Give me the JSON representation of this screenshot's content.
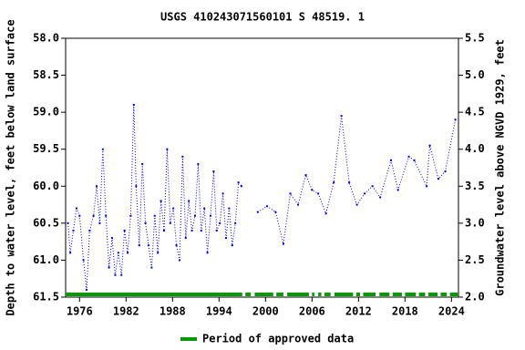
{
  "chart_data": {
    "type": "line",
    "title": "USGS 410243071560101 S 48519. 1",
    "ylabel": "Depth to water level, feet below land surface",
    "y2label": "Groundwater level above NGVD 1929, feet",
    "x": [
      1974.5,
      1974.8,
      1975.2,
      1975.6,
      1976.0,
      1976.5,
      1976.9,
      1977.3,
      1977.8,
      1978.2,
      1978.6,
      1979.0,
      1979.4,
      1979.8,
      1980.2,
      1980.6,
      1981.0,
      1981.4,
      1981.8,
      1982.2,
      1982.6,
      1983.0,
      1983.3,
      1983.7,
      1984.1,
      1984.5,
      1984.9,
      1985.3,
      1985.7,
      1986.1,
      1986.5,
      1986.9,
      1987.3,
      1987.7,
      1988.1,
      1988.5,
      1988.9,
      1989.3,
      1989.7,
      1990.1,
      1990.5,
      1990.9,
      1991.3,
      1991.7,
      1992.1,
      1992.5,
      1992.9,
      1993.3,
      1993.7,
      1994.1,
      1994.5,
      1994.9,
      1995.3,
      1995.7,
      1996.1,
      1996.5,
      1996.9,
      1998.0,
      1999.0,
      2000.2,
      2001.3,
      2002.3,
      2003.2,
      2004.2,
      2005.2,
      2006.0,
      2006.8,
      2007.8,
      2008.8,
      2009.8,
      2010.8,
      2011.8,
      2012.8,
      2013.8,
      2014.8,
      2016.2,
      2017.1,
      2018.5,
      2019.2,
      2020.8,
      2021.2,
      2022.3,
      2023.2,
      2024.5
    ],
    "series": [
      {
        "name": "Depth to water level",
        "color": "#0000cc",
        "values": [
          60.5,
          60.9,
          60.6,
          60.3,
          60.4,
          61.0,
          61.4,
          60.6,
          60.4,
          60.0,
          60.5,
          59.5,
          60.4,
          61.1,
          60.7,
          61.2,
          60.9,
          61.2,
          60.6,
          60.9,
          60.4,
          58.9,
          60.0,
          60.8,
          59.7,
          60.5,
          60.8,
          61.1,
          60.4,
          60.9,
          60.2,
          60.6,
          59.5,
          60.5,
          60.3,
          60.8,
          61.0,
          59.6,
          60.7,
          60.2,
          60.6,
          60.4,
          59.7,
          60.6,
          60.3,
          60.9,
          60.4,
          59.8,
          60.6,
          60.5,
          60.1,
          60.7,
          60.3,
          60.8,
          60.5,
          59.95,
          60.0,
          null,
          60.35,
          60.27,
          60.35,
          60.78,
          60.1,
          60.25,
          59.85,
          60.05,
          60.1,
          60.37,
          59.95,
          59.05,
          59.95,
          60.25,
          60.1,
          60.0,
          60.15,
          59.65,
          60.05,
          59.6,
          59.65,
          60.0,
          59.45,
          59.9,
          59.8,
          59.1
        ]
      }
    ],
    "xlim": [
      1974.2,
      2024.9
    ],
    "xticks": [
      1976,
      1982,
      1988,
      1994,
      2000,
      2006,
      2012,
      2018,
      2024
    ],
    "ylim": [
      58.0,
      61.5
    ],
    "yticks": [
      {
        "value": 58.0,
        "label": "58.0"
      },
      58.5,
      {
        "value": 59.0,
        "label": "59.0"
      },
      59.5,
      {
        "value": 60.0,
        "label": "60.0"
      },
      60.5,
      {
        "value": 61.0,
        "label": "61.0"
      },
      61.5
    ],
    "y2lim": [
      5.5,
      2.0
    ],
    "y2ticks": [
      5.5,
      {
        "value": 5.0,
        "label": "5.0"
      },
      4.5,
      {
        "value": 4.0,
        "label": "4.0"
      },
      3.5,
      {
        "value": 3.0,
        "label": "3.0"
      },
      2.5,
      {
        "value": 2.0,
        "label": "2.0"
      }
    ],
    "approved": {
      "name": "Period of approved data",
      "color": "#009900",
      "periods": [
        [
          1974.2,
          1997.0
        ],
        [
          1997.4,
          1998.1
        ],
        [
          1998.6,
          2001.0
        ],
        [
          2001.4,
          2002.3
        ],
        [
          2002.8,
          2005.6
        ],
        [
          2006.0,
          2006.3
        ],
        [
          2006.8,
          2007.2
        ],
        [
          2007.6,
          2008.4
        ],
        [
          2008.9,
          2011.3
        ],
        [
          2011.7,
          2012.2
        ],
        [
          2012.6,
          2014.2
        ],
        [
          2014.7,
          2016.0
        ],
        [
          2016.4,
          2017.6
        ],
        [
          2018.0,
          2019.4
        ],
        [
          2019.8,
          2020.6
        ],
        [
          2021.0,
          2022.2
        ],
        [
          2022.6,
          2023.4
        ],
        [
          2023.8,
          2024.8
        ]
      ]
    }
  }
}
